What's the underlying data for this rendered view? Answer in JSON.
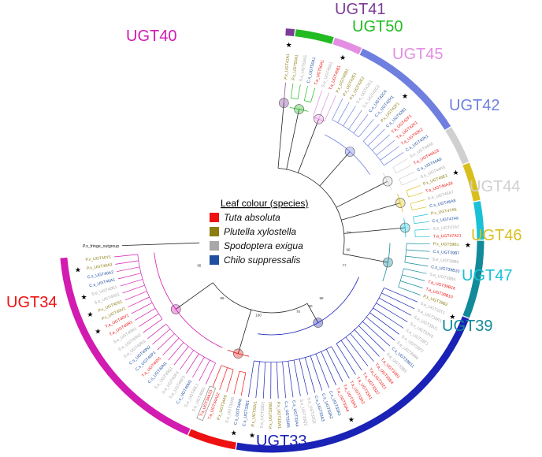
{
  "legend": {
    "title": "Leaf colour (species)",
    "items": [
      {
        "name": "Tuta absoluta",
        "color": "#ee1111"
      },
      {
        "name": "Plutella xylostella",
        "color": "#8b7d10"
      },
      {
        "name": "Spodoptera exigua",
        "color": "#a8a8a8"
      },
      {
        "name": "Chilo suppressalis",
        "color": "#1e4fa0"
      }
    ]
  },
  "families": [
    {
      "name": "UGT40",
      "color": "#d21bb0"
    },
    {
      "name": "UGT41",
      "color": "#7b3c97"
    },
    {
      "name": "UGT50",
      "color": "#22bb22"
    },
    {
      "name": "UGT45",
      "color": "#e38ee3"
    },
    {
      "name": "UGT42",
      "color": "#6f7fdf"
    },
    {
      "name": "UGT44",
      "color": "#d0d0d0"
    },
    {
      "name": "UGT46",
      "color": "#d9bf1e"
    },
    {
      "name": "UGT47",
      "color": "#19c1d6"
    },
    {
      "name": "UGT39",
      "color": "#138a99"
    },
    {
      "name": "UGT33",
      "color": "#1a23b5"
    },
    {
      "name": "UGT34",
      "color": "#ee1111"
    }
  ],
  "outgroup": "P.x_fringe_outgroup",
  "leaves": [
    {
      "label": "P.x_UGT41A1",
      "fam": 1,
      "sp": 1
    },
    {
      "label": "P.x_UGT50A1",
      "fam": 2,
      "sp": 1
    },
    {
      "label": "S.e_UGT50A5",
      "fam": 2,
      "sp": 2
    },
    {
      "label": "C.s_UGT50A1",
      "fam": 2,
      "sp": 3
    },
    {
      "label": "T.a_UGT50A1",
      "fam": 2,
      "sp": 0
    },
    {
      "label": "S.e_UGT45A1",
      "fam": 3,
      "sp": 2
    },
    {
      "label": "T.a_UGT45B1",
      "fam": 3,
      "sp": 0
    },
    {
      "label": "P.x_UGT45B1",
      "fam": 3,
      "sp": 1
    },
    {
      "label": "P.x_UGT42E1",
      "fam": 4,
      "sp": 1
    },
    {
      "label": "P.x_UGT42E2",
      "fam": 4,
      "sp": 1
    },
    {
      "label": "S.e_UGT42C1",
      "fam": 4,
      "sp": 2
    },
    {
      "label": "S.e_UGT42C2",
      "fam": 4,
      "sp": 2
    },
    {
      "label": "C.s_UGT42C4",
      "fam": 4,
      "sp": 3
    },
    {
      "label": "C.s_UGT42H1",
      "fam": 4,
      "sp": 3
    },
    {
      "label": "P.x_UGT42F1",
      "fam": 4,
      "sp": 1
    },
    {
      "label": "C.s_UGT42B1",
      "fam": 4,
      "sp": 3
    },
    {
      "label": "T.a_UGT42F1",
      "fam": 4,
      "sp": 0
    },
    {
      "label": "T.a_UGT42K1",
      "fam": 4,
      "sp": 0
    },
    {
      "label": "T.a_UGT42K2",
      "fam": 4,
      "sp": 0
    },
    {
      "label": "C.s_UGT42K1",
      "fam": 4,
      "sp": 3
    },
    {
      "label": "S.e_UGT44A6",
      "fam": 5,
      "sp": 2
    },
    {
      "label": "T.a_UGT44A23",
      "fam": 5,
      "sp": 0
    },
    {
      "label": "C.s_UGT44A8",
      "fam": 5,
      "sp": 3
    },
    {
      "label": "S.e_UGT44A5",
      "fam": 5,
      "sp": 2
    },
    {
      "label": "P.x_UGT46E1",
      "fam": 6,
      "sp": 1
    },
    {
      "label": "T.a_UGT46A28",
      "fam": 6,
      "sp": 0
    },
    {
      "label": "S.e_UGT46A7",
      "fam": 6,
      "sp": 2
    },
    {
      "label": "C.s_UGT46A8",
      "fam": 6,
      "sp": 3
    },
    {
      "label": "P.x_UGT47A5",
      "fam": 7,
      "sp": 1
    },
    {
      "label": "C.s_UGT47A6",
      "fam": 7,
      "sp": 3
    },
    {
      "label": "S.e_UGT47A7",
      "fam": 7,
      "sp": 2
    },
    {
      "label": "T.a_UGT47A21",
      "fam": 7,
      "sp": 0
    },
    {
      "label": "P.x_UGT39B1",
      "fam": 8,
      "sp": 1
    },
    {
      "label": "C.s_UGT39B7",
      "fam": 8,
      "sp": 3
    },
    {
      "label": "S.e_UGT39B9",
      "fam": 8,
      "sp": 2
    },
    {
      "label": "C.s_UGT39B10",
      "fam": 8,
      "sp": 3
    },
    {
      "label": "S.e_UGT39B4",
      "fam": 8,
      "sp": 2
    },
    {
      "label": "T.a_UGT39B16",
      "fam": 8,
      "sp": 0
    },
    {
      "label": "T.a_UGT39B10",
      "fam": 8,
      "sp": 0
    },
    {
      "label": "P.x_UGT39B2",
      "fam": 8,
      "sp": 1
    },
    {
      "label": "S.e_UGT33T1",
      "fam": 9,
      "sp": 2
    },
    {
      "label": "S.e_UGT33R1",
      "fam": 9,
      "sp": 2
    },
    {
      "label": "S.e_UGT33V1",
      "fam": 9,
      "sp": 2
    },
    {
      "label": "S.e_UGT33V2",
      "fam": 9,
      "sp": 2
    },
    {
      "label": "S.e_UGT33F1",
      "fam": 9,
      "sp": 2
    },
    {
      "label": "S.e_UGT33F2",
      "fam": 9,
      "sp": 2
    },
    {
      "label": "S.e_UGT33B6",
      "fam": 9,
      "sp": 2
    },
    {
      "label": "C.s_UGT33B11",
      "fam": 9,
      "sp": 3
    },
    {
      "label": "S.e_UGT33B5",
      "fam": 9,
      "sp": 2
    },
    {
      "label": "T.a_UGT33B1",
      "fam": 9,
      "sp": 0
    },
    {
      "label": "T.a_UGT33B4",
      "fam": 9,
      "sp": 0
    },
    {
      "label": "T.a_UGT33Z1",
      "fam": 9,
      "sp": 0
    },
    {
      "label": "T.a_UGT33Z2",
      "fam": 9,
      "sp": 0
    },
    {
      "label": "T.a_UGT33A1",
      "fam": 9,
      "sp": 0
    },
    {
      "label": "T.a_UGT33A2",
      "fam": 9,
      "sp": 0
    },
    {
      "label": "T.a_UGT33A3",
      "fam": 9,
      "sp": 0
    },
    {
      "label": "T.a_UGT33A4",
      "fam": 9,
      "sp": 0
    },
    {
      "label": "C.s_UGT33A1",
      "fam": 9,
      "sp": 3
    },
    {
      "label": "C.s_UGT33A2",
      "fam": 9,
      "sp": 3
    },
    {
      "label": "C.s_UGT33A3",
      "fam": 9,
      "sp": 3
    },
    {
      "label": "S.e_UGT33Q1",
      "fam": 9,
      "sp": 2
    },
    {
      "label": "S.e_UGT33Q2",
      "fam": 9,
      "sp": 2
    },
    {
      "label": "C.s_UGT33A4",
      "fam": 9,
      "sp": 3
    },
    {
      "label": "C.s_UGT33A5",
      "fam": 9,
      "sp": 3
    },
    {
      "label": "P.x_UGT33W1",
      "fam": 9,
      "sp": 1
    },
    {
      "label": "P.x_UGT33W2",
      "fam": 9,
      "sp": 1
    },
    {
      "label": "S.e_UGT33D1",
      "fam": 9,
      "sp": 2
    },
    {
      "label": "P.x_UGT33V1",
      "fam": 9,
      "sp": 1
    },
    {
      "label": "C.s_UGT33B1",
      "fam": 9,
      "sp": 3
    },
    {
      "label": "C.s_UGT34A6",
      "fam": 10,
      "sp": 3
    },
    {
      "label": "S.e_UGT34A5",
      "fam": 10,
      "sp": 2
    },
    {
      "label": "P.x_UGT34A5",
      "fam": 10,
      "sp": 1
    },
    {
      "label": "T.a_UGT34A22",
      "fam": 10,
      "sp": 0
    },
    {
      "label": "T.a_UGT34A23",
      "fam": 10,
      "sp": 0
    },
    {
      "label": "S.e_UGT40D1",
      "fam": 0,
      "sp": 2
    },
    {
      "label": "S.e_UGT40L1",
      "fam": 0,
      "sp": 2
    },
    {
      "label": "C.s_UGT40M1",
      "fam": 0,
      "sp": 3
    },
    {
      "label": "S.e_UGT40F3",
      "fam": 0,
      "sp": 2
    },
    {
      "label": "S.e_UGT40F4",
      "fam": 0,
      "sp": 2
    },
    {
      "label": "S.e_UGT40Q1",
      "fam": 0,
      "sp": 2
    },
    {
      "label": "C.s_UGT40N1",
      "fam": 0,
      "sp": 3
    },
    {
      "label": "T.a_UGT40N1",
      "fam": 0,
      "sp": 0
    },
    {
      "label": "C.s_UGT40P1",
      "fam": 0,
      "sp": 3
    },
    {
      "label": "C.s_UGT40N2",
      "fam": 0,
      "sp": 3
    },
    {
      "label": "S.e_UGT40N1",
      "fam": 0,
      "sp": 2
    },
    {
      "label": "S.e_UGT40N2",
      "fam": 0,
      "sp": 2
    },
    {
      "label": "S.e_UGT40R1",
      "fam": 0,
      "sp": 2
    },
    {
      "label": "T.a_UGT40R1",
      "fam": 0,
      "sp": 0
    },
    {
      "label": "T.a_UGT40V1",
      "fam": 0,
      "sp": 0
    },
    {
      "label": "P.x_UGT40V1",
      "fam": 0,
      "sp": 1
    },
    {
      "label": "P.x_UGT40S1",
      "fam": 0,
      "sp": 1
    },
    {
      "label": "S.e_UGT40S1",
      "fam": 0,
      "sp": 2
    },
    {
      "label": "S.e_UGT40K1",
      "fam": 0,
      "sp": 2
    },
    {
      "label": "C.s_UGT40A1",
      "fam": 0,
      "sp": 3
    },
    {
      "label": "C.s_UGT40A2",
      "fam": 0,
      "sp": 3
    },
    {
      "label": "P.x_UGT40A3",
      "fam": 0,
      "sp": 1
    },
    {
      "label": "P.x_UGT40Y1",
      "fam": 0,
      "sp": 1
    }
  ],
  "stars": [
    "P.x_UGT41A1",
    "T.a_UGT45B1",
    "P.x_UGT42F1",
    "P.x_UGT46E1",
    "P.x_UGT39B1",
    "S.e_UGT33T1",
    "P.x_UGT33V1",
    "T.a_UGT33A4",
    "C.s_UGT34A6",
    "P.x_UGT40A3",
    "P.x_UGT40S1",
    "T.a_UGT40V1",
    "S.e_UGT40K1"
  ],
  "highlighted_leaf": "T.a_UGT34A23",
  "bootstrap": [
    "74",
    "96",
    "98",
    "77",
    "90",
    "70",
    "100",
    "99",
    "95"
  ]
}
